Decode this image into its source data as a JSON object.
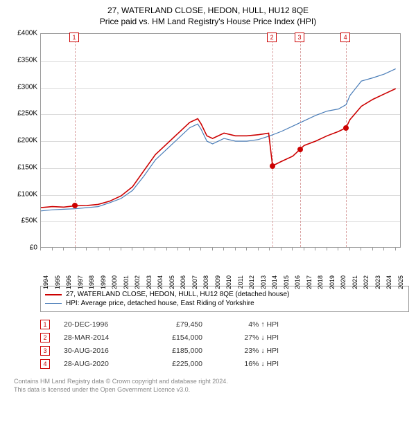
{
  "title_line1": "27, WATERLAND CLOSE, HEDON, HULL, HU12 8QE",
  "title_line2": "Price paid vs. HM Land Registry's House Price Index (HPI)",
  "chart": {
    "type": "line",
    "x_range": [
      1994,
      2025.5
    ],
    "y_range": [
      0,
      400000
    ],
    "y_ticks": [
      0,
      50000,
      100000,
      150000,
      200000,
      250000,
      300000,
      350000,
      400000
    ],
    "y_tick_labels": [
      "£0",
      "£50K",
      "£100K",
      "£150K",
      "£200K",
      "£250K",
      "£300K",
      "£350K",
      "£400K"
    ],
    "x_ticks": [
      1994,
      1995,
      1996,
      1997,
      1998,
      1999,
      2000,
      2001,
      2002,
      2003,
      2004,
      2005,
      2006,
      2007,
      2008,
      2009,
      2010,
      2011,
      2012,
      2013,
      2014,
      2015,
      2016,
      2017,
      2018,
      2019,
      2020,
      2021,
      2022,
      2023,
      2024,
      2025
    ],
    "background_color": "#ffffff",
    "grid_color": "#dcdcdc",
    "border_color": "#999999",
    "series": [
      {
        "name": "price_paid",
        "color": "#cc0000",
        "width": 1.6,
        "data": [
          [
            1994,
            76000
          ],
          [
            1995,
            78000
          ],
          [
            1996,
            77000
          ],
          [
            1996.97,
            79450
          ],
          [
            1998,
            80000
          ],
          [
            1999,
            82000
          ],
          [
            2000,
            88000
          ],
          [
            2001,
            98000
          ],
          [
            2002,
            115000
          ],
          [
            2003,
            145000
          ],
          [
            2004,
            175000
          ],
          [
            2005,
            195000
          ],
          [
            2006,
            215000
          ],
          [
            2007,
            235000
          ],
          [
            2007.7,
            242000
          ],
          [
            2008,
            232000
          ],
          [
            2008.5,
            210000
          ],
          [
            2009,
            205000
          ],
          [
            2010,
            215000
          ],
          [
            2011,
            210000
          ],
          [
            2012,
            210000
          ],
          [
            2013,
            212000
          ],
          [
            2013.9,
            215000
          ],
          [
            2014.24,
            154000
          ],
          [
            2015,
            162000
          ],
          [
            2016,
            172000
          ],
          [
            2016.66,
            185000
          ],
          [
            2017,
            192000
          ],
          [
            2018,
            200000
          ],
          [
            2019,
            210000
          ],
          [
            2020,
            218000
          ],
          [
            2020.66,
            225000
          ],
          [
            2021,
            240000
          ],
          [
            2022,
            265000
          ],
          [
            2023,
            278000
          ],
          [
            2024,
            288000
          ],
          [
            2025,
            298000
          ]
        ],
        "sale_points": [
          [
            1996.97,
            79450
          ],
          [
            2014.24,
            154000
          ],
          [
            2016.66,
            185000
          ],
          [
            2020.66,
            225000
          ]
        ]
      },
      {
        "name": "hpi",
        "color": "#4a7db8",
        "width": 1.2,
        "data": [
          [
            1994,
            70000
          ],
          [
            1995,
            72000
          ],
          [
            1996,
            73000
          ],
          [
            1997,
            74000
          ],
          [
            1998,
            76000
          ],
          [
            1999,
            78000
          ],
          [
            2000,
            85000
          ],
          [
            2001,
            93000
          ],
          [
            2002,
            108000
          ],
          [
            2003,
            135000
          ],
          [
            2004,
            165000
          ],
          [
            2005,
            185000
          ],
          [
            2006,
            205000
          ],
          [
            2007,
            225000
          ],
          [
            2007.7,
            232000
          ],
          [
            2008,
            222000
          ],
          [
            2008.5,
            200000
          ],
          [
            2009,
            195000
          ],
          [
            2010,
            205000
          ],
          [
            2011,
            200000
          ],
          [
            2012,
            200000
          ],
          [
            2013,
            203000
          ],
          [
            2014,
            210000
          ],
          [
            2015,
            218000
          ],
          [
            2016,
            228000
          ],
          [
            2017,
            238000
          ],
          [
            2018,
            248000
          ],
          [
            2019,
            256000
          ],
          [
            2020,
            260000
          ],
          [
            2020.66,
            268000
          ],
          [
            2021,
            285000
          ],
          [
            2022,
            312000
          ],
          [
            2023,
            318000
          ],
          [
            2024,
            325000
          ],
          [
            2025,
            335000
          ]
        ]
      }
    ],
    "markers": [
      {
        "n": "1",
        "x": 1996.97
      },
      {
        "n": "2",
        "x": 2014.24
      },
      {
        "n": "3",
        "x": 2016.66
      },
      {
        "n": "4",
        "x": 2020.66
      }
    ],
    "marker_line_color": "#d9a0a0",
    "marker_box_border": "#cc0000"
  },
  "legend": {
    "items": [
      {
        "color": "#cc0000",
        "width": 2,
        "label": "27, WATERLAND CLOSE, HEDON, HULL, HU12 8QE (detached house)"
      },
      {
        "color": "#4a7db8",
        "width": 1.2,
        "label": "HPI: Average price, detached house, East Riding of Yorkshire"
      }
    ]
  },
  "events": [
    {
      "n": "1",
      "date": "20-DEC-1996",
      "price": "£79,450",
      "delta": "4% ↑ HPI"
    },
    {
      "n": "2",
      "date": "28-MAR-2014",
      "price": "£154,000",
      "delta": "27% ↓ HPI"
    },
    {
      "n": "3",
      "date": "30-AUG-2016",
      "price": "£185,000",
      "delta": "23% ↓ HPI"
    },
    {
      "n": "4",
      "date": "28-AUG-2020",
      "price": "£225,000",
      "delta": "16% ↓ HPI"
    }
  ],
  "footer_line1": "Contains HM Land Registry data © Crown copyright and database right 2024.",
  "footer_line2": "This data is licensed under the Open Government Licence v3.0."
}
